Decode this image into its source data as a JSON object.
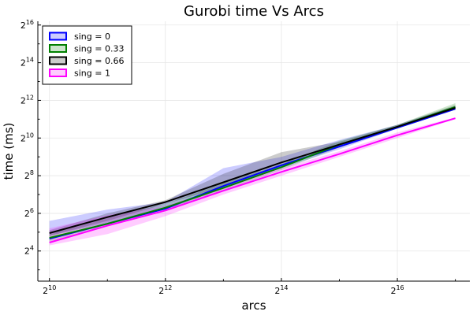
{
  "chart_data": {
    "type": "line",
    "title": "Gurobi time Vs Arcs",
    "xlabel": "arcs",
    "ylabel": "time (ms)",
    "xscale": "log2",
    "yscale": "log2",
    "xlim_log2": [
      9.8,
      17.25
    ],
    "ylim_log2": [
      2.4,
      16.2
    ],
    "x_ticks": [
      {
        "base": "2",
        "exp": "10",
        "v": 10
      },
      {
        "base": "2",
        "exp": "12",
        "v": 12
      },
      {
        "base": "2",
        "exp": "14",
        "v": 14
      },
      {
        "base": "2",
        "exp": "16",
        "v": 16
      }
    ],
    "y_ticks": [
      {
        "base": "2",
        "exp": "4",
        "v": 4
      },
      {
        "base": "2",
        "exp": "6",
        "v": 6
      },
      {
        "base": "2",
        "exp": "8",
        "v": 8
      },
      {
        "base": "2",
        "exp": "10",
        "v": 10
      },
      {
        "base": "2",
        "exp": "12",
        "v": 12
      },
      {
        "base": "2",
        "exp": "14",
        "v": 14
      },
      {
        "base": "2",
        "exp": "16",
        "v": 16
      }
    ],
    "grid": true,
    "legend_position": "top-left",
    "series": [
      {
        "name": "sing = 0",
        "color": "#0000ff",
        "x_log2": [
          10,
          11,
          12,
          13,
          14,
          15,
          16,
          17
        ],
        "y_log2": [
          4.65,
          5.45,
          6.25,
          7.45,
          8.55,
          9.55,
          10.55,
          11.55
        ],
        "band_lo": [
          4.8,
          5.5,
          6.2,
          7.3,
          8.4,
          9.4,
          10.5,
          11.5
        ],
        "band_hi": [
          5.6,
          6.2,
          6.6,
          8.4,
          9.0,
          9.9,
          10.7,
          11.7
        ]
      },
      {
        "name": "sing = 0.33",
        "color": "#008000",
        "x_log2": [
          10,
          11,
          12,
          13,
          14,
          15,
          16,
          17
        ],
        "y_log2": [
          4.7,
          5.45,
          6.3,
          7.35,
          8.45,
          9.65,
          10.6,
          11.65
        ],
        "band_lo": [
          4.5,
          5.4,
          6.2,
          7.2,
          8.3,
          9.5,
          10.5,
          11.5
        ],
        "band_hi": [
          4.9,
          5.8,
          6.5,
          7.6,
          8.6,
          9.85,
          10.7,
          11.85
        ]
      },
      {
        "name": "sing = 0.66",
        "color": "#000000",
        "x_log2": [
          10,
          11,
          12,
          13,
          14,
          15,
          16,
          17
        ],
        "y_log2": [
          4.95,
          5.8,
          6.6,
          7.65,
          8.7,
          9.65,
          10.6,
          11.6
        ],
        "band_lo": [
          4.8,
          5.6,
          6.5,
          7.4,
          8.5,
          9.5,
          10.5,
          11.5
        ],
        "band_hi": [
          5.1,
          6.0,
          6.7,
          8.1,
          9.25,
          9.8,
          10.7,
          11.75
        ]
      },
      {
        "name": "sing = 1",
        "color": "#ff00ff",
        "x_log2": [
          10,
          11,
          12,
          13,
          14,
          15,
          16,
          17
        ],
        "y_log2": [
          4.45,
          5.35,
          6.15,
          7.2,
          8.2,
          9.15,
          10.15,
          11.05
        ],
        "band_lo": [
          4.3,
          4.9,
          5.85,
          7.0,
          8.0,
          9.0,
          10.0,
          11.0
        ],
        "band_hi": [
          5.2,
          5.9,
          6.4,
          7.4,
          8.4,
          9.3,
          10.3,
          11.1
        ]
      }
    ]
  }
}
